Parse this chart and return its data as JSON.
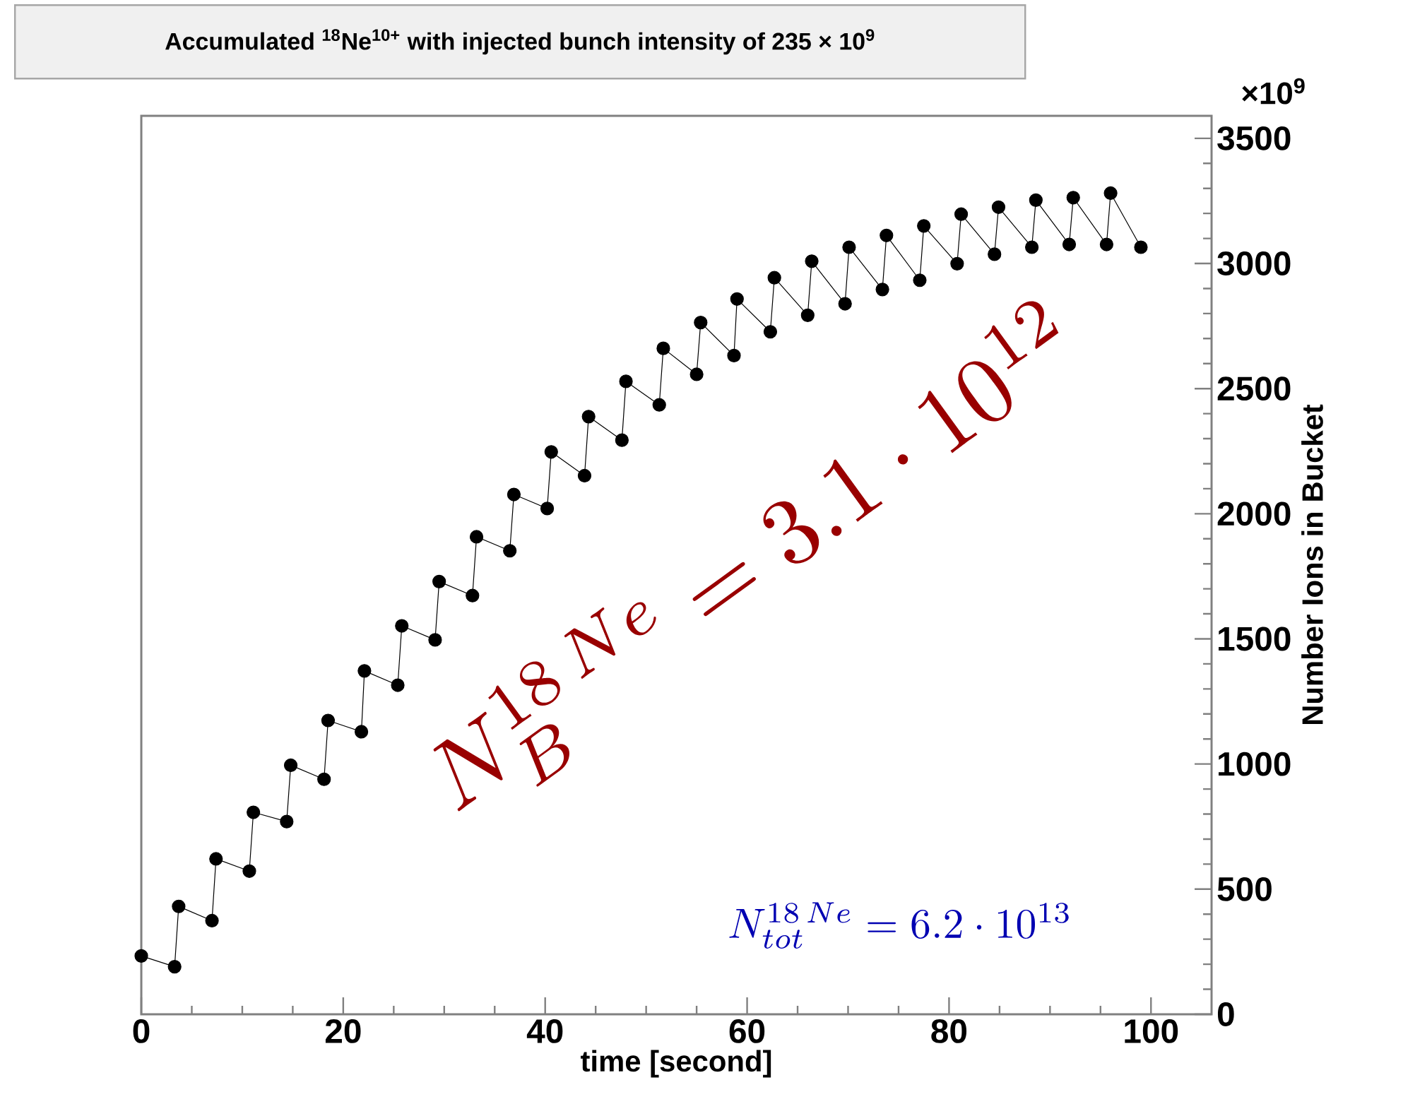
{
  "chart_data": {
    "type": "line",
    "title": "Accumulated $^{18}$Ne$^{10+}$ with injected bunch intensity of 235 × 10$^{9}$",
    "xlabel": "time [second]",
    "ylabel": "Number Ions in Bucket",
    "annotations": [
      "×10$^{9}$",
      "N_B^{18\\,Ne}=3.1\\cdot 10^{12}",
      "N_{tot}^{18\\,Ne}=6.2\\cdot 10^{13}"
    ],
    "series": [
      {
        "color": "#000000",
        "x": [
          0,
          3.3,
          3.7,
          7.0,
          7.4,
          10.7,
          11.1,
          14.4,
          14.8,
          18.1,
          18.5,
          21.8,
          22.1,
          25.4,
          25.8,
          29.1,
          29.5,
          32.8,
          33.2,
          36.5,
          36.9,
          40.2,
          40.6,
          43.9,
          44.3,
          47.6,
          48.0,
          51.3,
          51.7,
          55.0,
          55.4,
          58.7,
          59.0,
          62.3,
          62.7,
          66.0,
          66.4,
          69.7,
          70.1,
          73.4,
          73.8,
          77.1,
          77.5,
          80.8,
          81.2,
          84.5,
          84.9,
          88.2,
          88.6,
          91.9,
          92.3,
          95.6,
          96.0,
          99.0
        ],
        "values": [
          233,
          190,
          431,
          374,
          621,
          572,
          807,
          770,
          995,
          939,
          1174,
          1129,
          1372,
          1315,
          1552,
          1496,
          1729,
          1673,
          1908,
          1852,
          2077,
          2021,
          2247,
          2152,
          2388,
          2294,
          2529,
          2435,
          2661,
          2557,
          2764,
          2632,
          2858,
          2727,
          2943,
          2793,
          3009,
          2839,
          3065,
          2896,
          3112,
          2933,
          3150,
          2999,
          3197,
          3037,
          3225,
          3065,
          3253,
          3076,
          3263,
          3076,
          3281,
          3065
        ]
      }
    ],
    "xlim": [
      0,
      106
    ],
    "ylim": [
      0,
      3590
    ],
    "xticks": [
      0,
      20,
      40,
      60,
      80,
      100
    ],
    "yticks": [
      0,
      500,
      1000,
      1500,
      2000,
      2500,
      3000,
      3500
    ],
    "marker": "circle",
    "line_style": "solid",
    "grid": false
  }
}
